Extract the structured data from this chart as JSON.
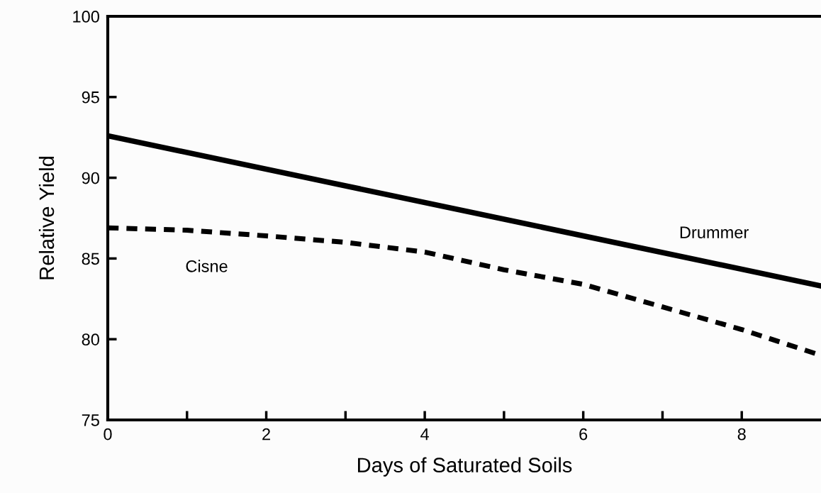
{
  "chart_data": {
    "type": "line",
    "xlabel": "Days of Saturated Soils",
    "ylabel": "Relative Yield",
    "x": [
      0,
      1,
      2,
      3,
      4,
      5,
      6,
      7,
      8,
      9
    ],
    "series": [
      {
        "name": "Drummer",
        "color": "#000000",
        "line_style": "solid",
        "x": [
          0,
          9
        ],
        "values": [
          92.6,
          83.3
        ]
      },
      {
        "name": "Cisne",
        "color": "#000000",
        "line_style": "dashed",
        "values": [
          86.9,
          86.75,
          86.4,
          86.0,
          85.4,
          84.3,
          83.4,
          82.0,
          80.6,
          79.0
        ]
      }
    ],
    "xlim": [
      0,
      9
    ],
    "xticks": [
      0,
      {
        "value": 1,
        "label": null
      },
      2,
      {
        "value": 3,
        "label": null
      },
      4,
      {
        "value": 5,
        "label": null
      },
      6,
      {
        "value": 7,
        "label": null
      },
      8
    ],
    "ylim": [
      75,
      100
    ],
    "yticks": [
      75,
      80,
      85,
      90,
      95,
      100
    ],
    "grid": false,
    "legend": false,
    "marker": "none"
  }
}
